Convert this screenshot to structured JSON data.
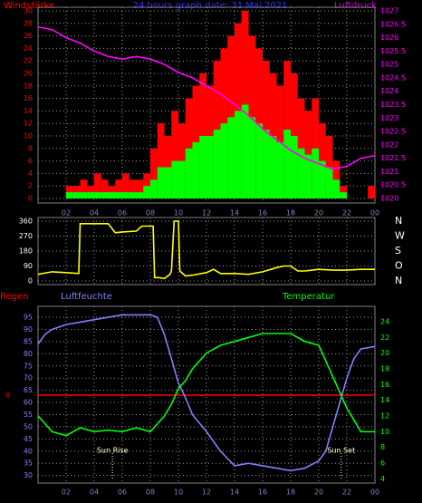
{
  "chart_data": [
    {
      "type": "bar",
      "title": "24 hours graph date: 31 Mai 2021",
      "x": [
        0,
        0.5,
        1,
        1.5,
        2,
        2.5,
        3,
        3.5,
        4,
        4.5,
        5,
        5.5,
        6,
        6.5,
        7,
        7.5,
        8,
        8.5,
        9,
        9.5,
        10,
        10.5,
        11,
        11.5,
        12,
        12.5,
        13,
        13.5,
        14,
        14.5,
        15,
        15.5,
        16,
        16.5,
        17,
        17.5,
        18,
        18.5,
        19,
        19.5,
        20,
        20.5,
        21,
        21.5,
        22,
        22.5,
        23,
        23.5
      ],
      "series": [
        {
          "name": "Windstärke",
          "color": "#ff0000",
          "values": [
            0,
            0,
            0,
            0,
            2,
            2,
            3,
            2,
            4,
            3,
            2,
            3,
            4,
            3,
            3,
            4,
            8,
            12,
            10,
            14,
            12,
            16,
            18,
            20,
            18,
            22,
            24,
            26,
            28,
            30,
            26,
            24,
            22,
            20,
            18,
            22,
            20,
            16,
            14,
            16,
            12,
            10,
            6,
            2,
            0,
            0,
            0,
            2
          ]
        },
        {
          "color": "#00ff00",
          "values": [
            0,
            0,
            0,
            0,
            1,
            1,
            1,
            1,
            1,
            1,
            1,
            1,
            1,
            1,
            1,
            2,
            3,
            5,
            5,
            6,
            6,
            8,
            9,
            10,
            10,
            11,
            12,
            13,
            14,
            15,
            13,
            12,
            11,
            10,
            9,
            11,
            10,
            8,
            7,
            8,
            6,
            5,
            3,
            1,
            0,
            0,
            0,
            0
          ]
        },
        {
          "name": "Luftdruck",
          "color": "#ff00ff",
          "axis": "y2",
          "x": [
            0,
            1,
            2,
            3,
            4,
            5,
            6,
            7,
            8,
            9,
            10,
            11,
            12,
            13,
            14,
            15,
            16,
            17,
            18,
            19,
            20,
            21,
            22,
            23,
            24
          ],
          "values": [
            1026.4,
            1026.3,
            1026.0,
            1025.8,
            1025.5,
            1025.3,
            1025.2,
            1025.3,
            1025.2,
            1025.0,
            1024.7,
            1024.5,
            1024.2,
            1023.9,
            1023.5,
            1023.1,
            1022.6,
            1022.2,
            1021.8,
            1021.5,
            1021.3,
            1021.1,
            1021.2,
            1021.5,
            1021.6
          ]
        }
      ],
      "xlim": [
        0,
        24
      ],
      "xticks": [
        {
          "value": 2,
          "label": "02"
        },
        {
          "value": 4,
          "label": "04"
        },
        {
          "value": 6,
          "label": "06"
        },
        {
          "value": 8,
          "label": "08"
        },
        10,
        12,
        14,
        16,
        18,
        20,
        22,
        {
          "value": 24,
          "label": "00"
        }
      ],
      "ylim": [
        0,
        30
      ],
      "yticks": [
        0,
        2,
        4,
        6,
        8,
        10,
        12,
        14,
        16,
        18,
        20,
        22,
        24,
        26,
        28,
        30
      ],
      "y2lim": [
        1020,
        1027
      ],
      "y2ticks": [
        1020,
        1020.5,
        1021,
        1021.5,
        1022,
        1022.5,
        1023,
        1023.5,
        1024,
        1024.5,
        1025,
        1025.5,
        1026,
        1026.5,
        1027
      ],
      "grid": true
    },
    {
      "type": "line",
      "series": [
        {
          "color": "#ffff00",
          "x": [
            0,
            1,
            2,
            2.9,
            3,
            4,
            5,
            5.5,
            6,
            7,
            7.4,
            8,
            8.2,
            8.3,
            8.6,
            9,
            9.4,
            9.5,
            9.7,
            10.0,
            10.1,
            10.5,
            11,
            12,
            12.5,
            13,
            14,
            15,
            16,
            17,
            17.5,
            18,
            18.5,
            19,
            20,
            21,
            22,
            23,
            24
          ],
          "values": [
            40,
            55,
            50,
            45,
            345,
            345,
            345,
            290,
            295,
            300,
            330,
            330,
            330,
            20,
            20,
            15,
            40,
            60,
            360,
            360,
            60,
            30,
            35,
            50,
            70,
            45,
            45,
            40,
            55,
            80,
            90,
            90,
            60,
            60,
            70,
            65,
            65,
            70,
            70
          ]
        }
      ],
      "xlim": [
        0,
        24
      ],
      "ylim": [
        0,
        360
      ],
      "yticks": [
        0,
        90,
        180,
        270,
        360
      ],
      "y2lim": [
        0,
        360
      ],
      "y2ticks": [
        {
          "value": 360,
          "label": "N"
        },
        {
          "value": 270,
          "label": "W"
        },
        {
          "value": 180,
          "label": "S"
        },
        {
          "value": 90,
          "label": "O"
        },
        {
          "value": 0,
          "label": "N"
        }
      ],
      "grid": true
    },
    {
      "type": "line",
      "x": [
        0,
        0.5,
        1,
        2,
        3,
        4,
        5,
        6,
        7,
        8,
        8.5,
        9,
        9.5,
        10,
        10.5,
        11,
        12,
        13,
        14,
        15,
        16,
        17,
        18,
        19,
        20,
        20.5,
        21,
        21.5,
        22,
        22.5,
        23,
        24
      ],
      "series": [
        {
          "name": "Regen",
          "color": "#ff0000",
          "axis": "y3",
          "x": [
            0,
            24
          ],
          "values": [
            0,
            0
          ]
        },
        {
          "name": "Luftfeuchte",
          "color": "#8080ff",
          "values": [
            84,
            88,
            90,
            92,
            93,
            94,
            95,
            96,
            96,
            96,
            95,
            88,
            78,
            68,
            62,
            55,
            48,
            40,
            34,
            35,
            34,
            33,
            32,
            33,
            36,
            40,
            50,
            60,
            70,
            78,
            82,
            83
          ]
        },
        {
          "name": "Temperatur",
          "color": "#00ff00",
          "axis": "y2",
          "values": [
            12,
            11,
            10,
            9.5,
            10.5,
            10,
            10.2,
            10,
            10.5,
            10,
            11,
            12,
            13.5,
            15.5,
            16.5,
            18,
            20,
            21,
            21.5,
            22,
            22.5,
            22.5,
            22.5,
            21.5,
            21,
            19,
            17,
            15,
            13,
            11.5,
            10,
            10
          ]
        }
      ],
      "xlim": [
        0,
        24
      ],
      "xticks": [
        {
          "value": 2,
          "label": "02"
        },
        {
          "value": 4,
          "label": "04"
        },
        {
          "value": 6,
          "label": "06"
        },
        {
          "value": 8,
          "label": "08"
        },
        10,
        12,
        14,
        16,
        18,
        20,
        22,
        {
          "value": 24,
          "label": "00"
        }
      ],
      "ylim": [
        28,
        98
      ],
      "yticks": [
        30,
        35,
        40,
        45,
        50,
        55,
        60,
        65,
        70,
        75,
        80,
        85,
        90,
        95
      ],
      "y2lim": [
        3.8,
        25.5
      ],
      "y2ticks": [
        4,
        6,
        8,
        10,
        12,
        14,
        16,
        18,
        20,
        22,
        24
      ],
      "y3lim": [
        -1,
        1
      ],
      "y3ticks": [
        0
      ],
      "annotations": [
        {
          "text": "Sun Rise",
          "x": 5.3
        },
        {
          "text": "Sun Set",
          "x": 21.6
        }
      ],
      "grid": true
    }
  ]
}
